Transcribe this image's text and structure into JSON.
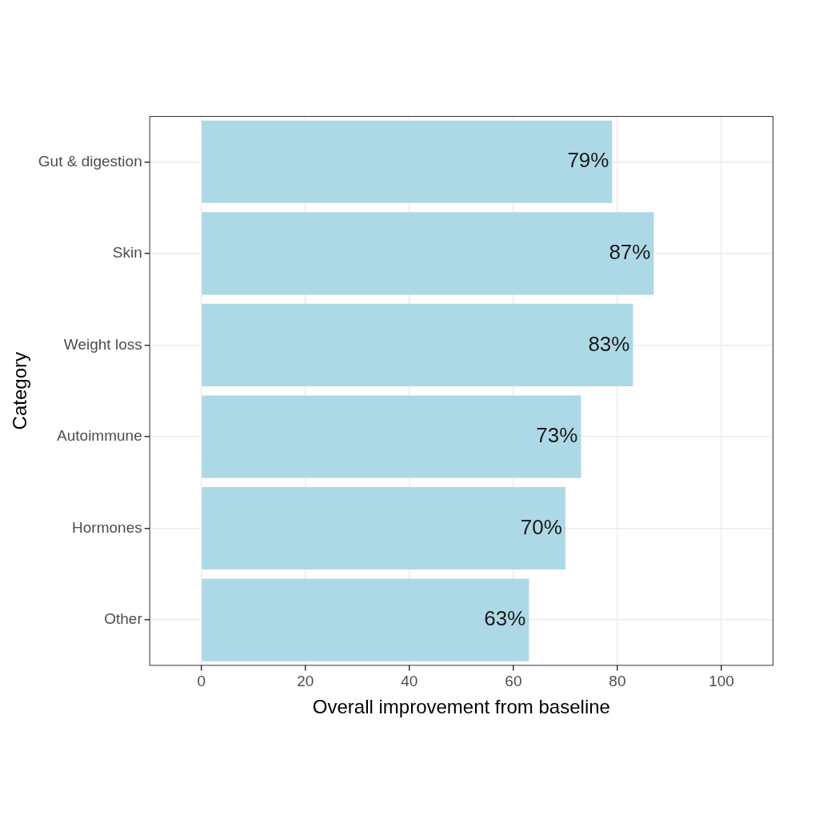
{
  "chart_data": {
    "type": "bar",
    "orientation": "horizontal",
    "categories": [
      "Gut & digestion",
      "Skin",
      "Weight loss",
      "Autoimmune",
      "Hormones",
      "Other"
    ],
    "values": [
      79,
      87,
      83,
      73,
      70,
      63
    ],
    "value_labels": [
      "79%",
      "87%",
      "83%",
      "73%",
      "70%",
      "63%"
    ],
    "data_labels": true,
    "color": "#add8e6",
    "x_label": "Overall improvement from baseline",
    "y_label": "Category",
    "xlim": [
      -10,
      110
    ],
    "xticks": [
      0,
      20,
      40,
      60,
      80,
      100
    ],
    "grid": true
  }
}
